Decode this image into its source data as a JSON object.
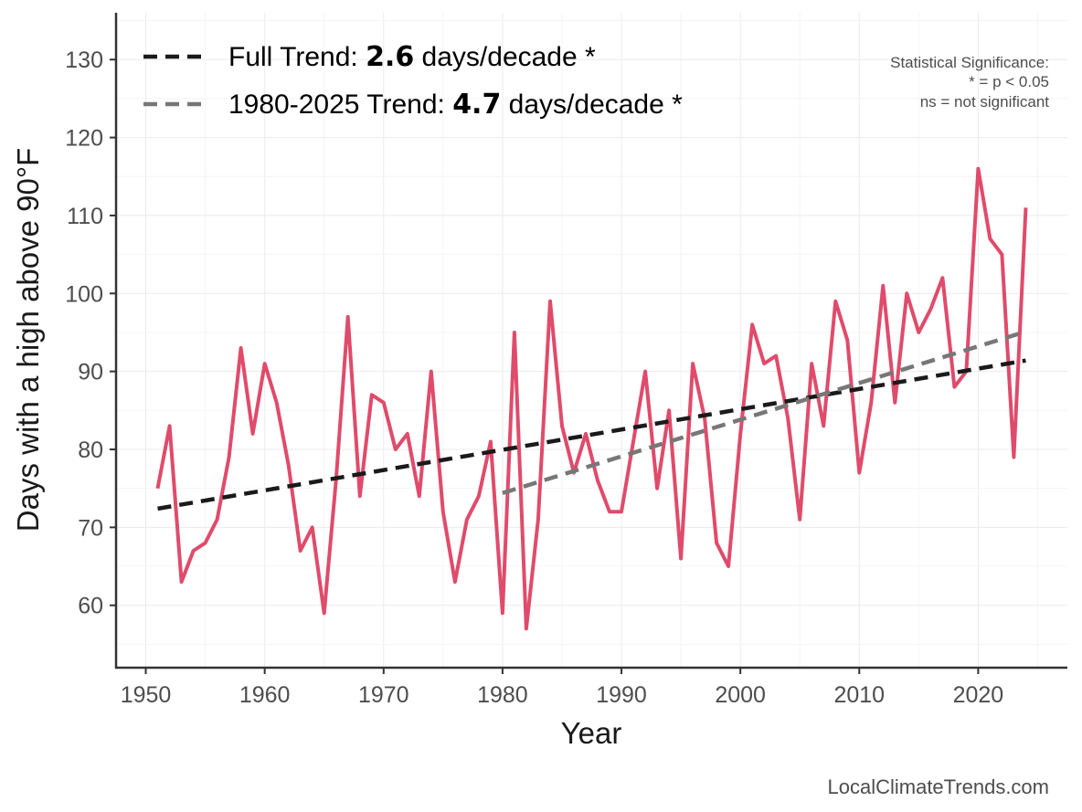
{
  "chart_data": {
    "type": "line",
    "xlabel": "Year",
    "ylabel": "Days with a high above 90°F",
    "xlim": [
      1947.5,
      2027.5
    ],
    "ylim": [
      52,
      136
    ],
    "x_ticks": [
      1950,
      1960,
      1970,
      1980,
      1990,
      2000,
      2010,
      2020
    ],
    "y_ticks": [
      60,
      70,
      80,
      90,
      100,
      110,
      120,
      130
    ],
    "grid": true,
    "series": [
      {
        "color": "#e04b6b",
        "x": [
          1951,
          1952,
          1953,
          1954,
          1955,
          1956,
          1957,
          1958,
          1959,
          1960,
          1961,
          1962,
          1963,
          1964,
          1965,
          1966,
          1967,
          1968,
          1969,
          1970,
          1971,
          1972,
          1973,
          1974,
          1975,
          1976,
          1977,
          1978,
          1979,
          1980,
          1981,
          1982,
          1983,
          1984,
          1985,
          1986,
          1987,
          1988,
          1989,
          1990,
          1991,
          1992,
          1993,
          1994,
          1995,
          1996,
          1997,
          1998,
          1999,
          2000,
          2001,
          2002,
          2003,
          2004,
          2005,
          2006,
          2007,
          2008,
          2009,
          2010,
          2011,
          2012,
          2013,
          2014,
          2015,
          2016,
          2017,
          2018,
          2019,
          2020,
          2021,
          2022,
          2023,
          2024
        ],
        "values": [
          75,
          83,
          63,
          67,
          68,
          71,
          79,
          93,
          82,
          91,
          86,
          78,
          67,
          70,
          59,
          76,
          97,
          74,
          87,
          86,
          80,
          82,
          74,
          90,
          72,
          63,
          71,
          74,
          81,
          59,
          95,
          57,
          71,
          99,
          83,
          77,
          82,
          76,
          72,
          72,
          81,
          90,
          75,
          85,
          66,
          91,
          84,
          68,
          65,
          82,
          96,
          91,
          92,
          84,
          71,
          91,
          83,
          99,
          94,
          77,
          86,
          101,
          86,
          100,
          95,
          98,
          102,
          88,
          90,
          116,
          107,
          105,
          79,
          111
        ]
      }
    ],
    "trends": [
      {
        "label_prefix": "Full Trend: ",
        "label_value": "2.6",
        "label_suffix": " days/decade *",
        "color": "#1a1a1a",
        "x": [
          1951,
          2024
        ],
        "y": [
          72.4,
          91.4
        ]
      },
      {
        "label_prefix": "1980-2025 Trend: ",
        "label_value": "4.7",
        "label_suffix": " days/decade *",
        "color": "#777777",
        "x": [
          1980,
          2024
        ],
        "y": [
          74.4,
          95.1
        ]
      }
    ],
    "legend_position": "top-left",
    "annotations": {
      "significance_title": "Statistical Significance:",
      "significance_line1": "* = p < 0.05",
      "significance_line2": "ns = not significant"
    },
    "source": "LocalClimateTrends.com"
  }
}
